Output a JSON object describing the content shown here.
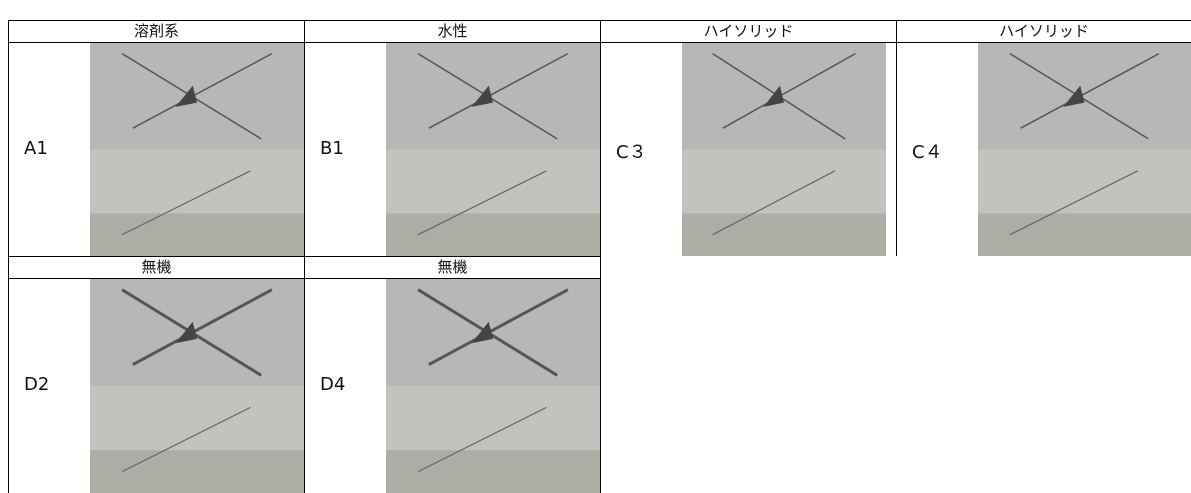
{
  "rows": [
    {
      "headers": [
        "溶剤系",
        "水性",
        "ハイソリッド",
        "ハイソリッド"
      ],
      "samples": [
        "A1",
        "B1",
        "C３",
        "C４"
      ]
    },
    {
      "headers": [
        "無機",
        "無機"
      ],
      "samples": [
        "D2",
        "D4"
      ]
    }
  ]
}
